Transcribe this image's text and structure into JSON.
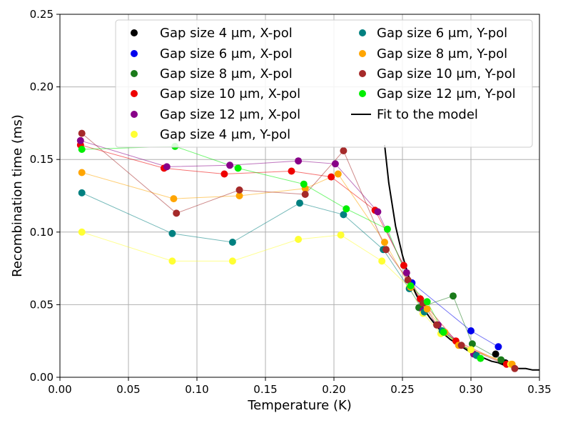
{
  "chart_data": {
    "type": "scatter",
    "title": "",
    "xlabel": "Temperature (K)",
    "ylabel": "Recombination time (ms)",
    "xlim": [
      0.0,
      0.35
    ],
    "ylim": [
      0.0,
      0.25
    ],
    "grid": true,
    "legend_position": "top-right",
    "x_ticks": [
      {
        "value": 0.0,
        "label": "0.00"
      },
      {
        "value": 0.05,
        "label": "0.05"
      },
      {
        "value": 0.1,
        "label": "0.10"
      },
      {
        "value": 0.15,
        "label": "0.15"
      },
      {
        "value": 0.2,
        "label": "0.20"
      },
      {
        "value": 0.25,
        "label": "0.25"
      },
      {
        "value": 0.3,
        "label": "0.30"
      },
      {
        "value": 0.35,
        "label": "0.35"
      }
    ],
    "y_ticks": [
      {
        "value": 0.0,
        "label": "0.00"
      },
      {
        "value": 0.05,
        "label": "0.05"
      },
      {
        "value": 0.1,
        "label": "0.10"
      },
      {
        "value": 0.15,
        "label": "0.15"
      },
      {
        "value": 0.2,
        "label": "0.20"
      },
      {
        "value": 0.25,
        "label": "0.25"
      }
    ],
    "series": [
      {
        "name": "Gap size 4 μm, X-pol",
        "color": "#000000",
        "points": [
          [
            0.318,
            0.016
          ],
          [
            0.325,
            0.01
          ]
        ]
      },
      {
        "name": "Gap size 6 μm, X-pol",
        "color": "#0000ee",
        "points": [
          [
            0.257,
            0.065
          ],
          [
            0.3,
            0.032
          ],
          [
            0.32,
            0.021
          ]
        ]
      },
      {
        "name": "Gap size 8 μm, X-pol",
        "color": "#1a7a1a",
        "points": [
          [
            0.262,
            0.048
          ],
          [
            0.287,
            0.056
          ],
          [
            0.301,
            0.023
          ],
          [
            0.322,
            0.012
          ]
        ]
      },
      {
        "name": "Gap size 10 μm, X-pol",
        "color": "#ee0000",
        "points": [
          [
            0.015,
            0.16
          ],
          [
            0.076,
            0.144
          ],
          [
            0.12,
            0.14
          ],
          [
            0.169,
            0.142
          ],
          [
            0.198,
            0.138
          ],
          [
            0.23,
            0.115
          ],
          [
            0.251,
            0.077
          ],
          [
            0.263,
            0.054
          ],
          [
            0.289,
            0.025
          ],
          [
            0.326,
            0.009
          ]
        ]
      },
      {
        "name": "Gap size 12 μm, X-pol",
        "color": "#880088",
        "points": [
          [
            0.015,
            0.163
          ],
          [
            0.078,
            0.145
          ],
          [
            0.124,
            0.146
          ],
          [
            0.174,
            0.149
          ],
          [
            0.201,
            0.147
          ],
          [
            0.232,
            0.114
          ],
          [
            0.253,
            0.072
          ],
          [
            0.265,
            0.046
          ],
          [
            0.276,
            0.036
          ],
          [
            0.302,
            0.016
          ]
        ]
      },
      {
        "name": "Gap size 4 μm, Y-pol",
        "color": "#ffff33",
        "points": [
          [
            0.016,
            0.1
          ],
          [
            0.082,
            0.08
          ],
          [
            0.126,
            0.08
          ],
          [
            0.174,
            0.095
          ],
          [
            0.205,
            0.098
          ],
          [
            0.235,
            0.08
          ],
          [
            0.255,
            0.062
          ],
          [
            0.265,
            0.044
          ],
          [
            0.278,
            0.03
          ],
          [
            0.3,
            0.019
          ],
          [
            0.329,
            0.009
          ]
        ]
      },
      {
        "name": "Gap size 6 μm, Y-pol",
        "color": "#008080",
        "points": [
          [
            0.016,
            0.127
          ],
          [
            0.082,
            0.099
          ],
          [
            0.126,
            0.093
          ],
          [
            0.175,
            0.12
          ],
          [
            0.207,
            0.112
          ],
          [
            0.236,
            0.088
          ],
          [
            0.255,
            0.061
          ],
          [
            0.266,
            0.045
          ],
          [
            0.279,
            0.032
          ],
          [
            0.304,
            0.015
          ]
        ]
      },
      {
        "name": "Gap size 8 μm, Y-pol",
        "color": "#ffa500",
        "points": [
          [
            0.016,
            0.141
          ],
          [
            0.083,
            0.123
          ],
          [
            0.131,
            0.125
          ],
          [
            0.179,
            0.13
          ],
          [
            0.203,
            0.14
          ],
          [
            0.237,
            0.093
          ],
          [
            0.256,
            0.062
          ],
          [
            0.268,
            0.047
          ],
          [
            0.281,
            0.031
          ],
          [
            0.291,
            0.022
          ],
          [
            0.33,
            0.009
          ]
        ]
      },
      {
        "name": "Gap size 10 μm, Y-pol",
        "color": "#a52a2a",
        "points": [
          [
            0.016,
            0.168
          ],
          [
            0.085,
            0.113
          ],
          [
            0.131,
            0.129
          ],
          [
            0.179,
            0.126
          ],
          [
            0.207,
            0.156
          ],
          [
            0.238,
            0.088
          ],
          [
            0.254,
            0.067
          ],
          [
            0.265,
            0.051
          ],
          [
            0.275,
            0.036
          ],
          [
            0.293,
            0.022
          ],
          [
            0.332,
            0.006
          ]
        ]
      },
      {
        "name": "Gap size 12 μm, Y-pol",
        "color": "#00ee00",
        "points": [
          [
            0.016,
            0.157
          ],
          [
            0.084,
            0.159
          ],
          [
            0.13,
            0.144
          ],
          [
            0.178,
            0.133
          ],
          [
            0.209,
            0.116
          ],
          [
            0.239,
            0.102
          ],
          [
            0.256,
            0.063
          ],
          [
            0.268,
            0.052
          ],
          [
            0.28,
            0.031
          ],
          [
            0.307,
            0.013
          ]
        ]
      }
    ],
    "fit": {
      "name": "Fit to the model",
      "color": "#000000",
      "points": [
        [
          0.237,
          0.16
        ],
        [
          0.24,
          0.134
        ],
        [
          0.245,
          0.104
        ],
        [
          0.25,
          0.084
        ],
        [
          0.255,
          0.068
        ],
        [
          0.26,
          0.057
        ],
        [
          0.265,
          0.048
        ],
        [
          0.27,
          0.041
        ],
        [
          0.275,
          0.035
        ],
        [
          0.28,
          0.03
        ],
        [
          0.285,
          0.026
        ],
        [
          0.29,
          0.023
        ],
        [
          0.295,
          0.02
        ],
        [
          0.3,
          0.017
        ],
        [
          0.305,
          0.015
        ],
        [
          0.31,
          0.013
        ],
        [
          0.315,
          0.011
        ],
        [
          0.32,
          0.01
        ],
        [
          0.325,
          0.008
        ],
        [
          0.33,
          0.007
        ],
        [
          0.335,
          0.006
        ],
        [
          0.34,
          0.006
        ],
        [
          0.345,
          0.005
        ],
        [
          0.35,
          0.005
        ]
      ]
    },
    "legend_labels": [
      "Gap size 4 μm, X-pol",
      "Gap size 6 μm, X-pol",
      "Gap size 8 μm, X-pol",
      "Gap size 10 μm, X-pol",
      "Gap size 12 μm, X-pol",
      "Gap size 4 μm, Y-pol",
      "Gap size 6 μm, Y-pol",
      "Gap size 8 μm, Y-pol",
      "Gap size 10 μm, Y-pol",
      "Gap size 12 μm, Y-pol",
      "Fit to the model"
    ]
  }
}
